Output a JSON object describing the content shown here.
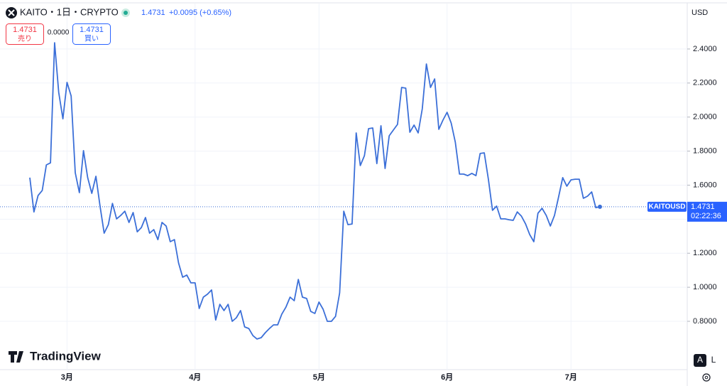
{
  "header": {
    "symbol": "KAITO・1日・CRYPTO",
    "price": "1.4731",
    "change": "+0.0095 (+0.65%)",
    "sell_price": "1.4731",
    "sell_label": "売り",
    "spread": "0.0000",
    "buy_price": "1.4731",
    "buy_label": "買い",
    "currency": "USD",
    "logo": "TradingView",
    "button_auto": "A",
    "button_log": "L"
  },
  "chart_data": {
    "type": "line",
    "symbol_tag": "KAITOUSD",
    "countdown": "02:22:36",
    "categories": [
      null,
      null,
      null,
      null,
      null,
      null,
      null,
      null,
      null,
      "3月",
      null,
      null,
      null,
      null,
      null,
      null,
      null,
      null,
      null,
      null,
      null,
      null,
      null,
      null,
      null,
      null,
      null,
      null,
      null,
      null,
      null,
      null,
      null,
      null,
      null,
      null,
      null,
      null,
      null,
      null,
      "4月",
      null,
      null,
      null,
      null,
      null,
      null,
      null,
      null,
      null,
      null,
      null,
      null,
      null,
      null,
      null,
      null,
      null,
      null,
      null,
      null,
      null,
      null,
      null,
      null,
      null,
      null,
      null,
      null,
      null,
      "5月",
      null,
      null,
      null,
      null,
      null,
      null,
      null,
      null,
      null,
      null,
      null,
      null,
      null,
      null,
      null,
      null,
      null,
      null,
      null,
      null,
      null,
      null,
      null,
      null,
      null,
      null,
      null,
      null,
      null,
      null,
      "6月",
      null,
      null,
      null,
      null,
      null,
      null,
      null,
      null,
      null,
      null,
      null,
      null,
      null,
      null,
      null,
      null,
      null,
      null,
      null,
      null,
      null,
      null,
      null,
      null,
      null,
      null,
      null,
      null,
      null,
      "7月",
      null,
      null,
      null,
      null,
      null,
      null,
      null
    ],
    "series": [
      {
        "name": "KAITOUSD",
        "color": "#3b6fd8",
        "values": [
          1.644,
          1.443,
          1.539,
          1.569,
          1.719,
          1.731,
          2.437,
          2.145,
          1.99,
          2.204,
          2.124,
          1.673,
          1.556,
          1.803,
          1.644,
          1.552,
          1.652,
          1.477,
          1.318,
          1.368,
          1.493,
          1.402,
          1.422,
          1.447,
          1.381,
          1.439,
          1.326,
          1.351,
          1.41,
          1.318,
          1.339,
          1.28,
          1.381,
          1.36,
          1.268,
          1.28,
          1.143,
          1.059,
          1.072,
          1.026,
          1.026,
          0.875,
          0.942,
          0.959,
          0.984,
          0.808,
          0.9,
          0.863,
          0.9,
          0.8,
          0.821,
          0.863,
          0.767,
          0.758,
          0.716,
          0.696,
          0.704,
          0.733,
          0.758,
          0.779,
          0.779,
          0.842,
          0.884,
          0.942,
          0.921,
          1.046,
          0.942,
          0.934,
          0.858,
          0.846,
          0.913,
          0.871,
          0.8,
          0.8,
          0.829,
          0.967,
          1.447,
          1.368,
          1.372,
          1.907,
          1.715,
          1.773,
          1.932,
          1.936,
          1.727,
          1.949,
          1.698,
          1.89,
          1.924,
          1.957,
          2.174,
          2.17,
          1.911,
          1.953,
          1.907,
          2.049,
          2.312,
          2.174,
          2.224,
          1.928,
          1.982,
          2.028,
          1.965,
          1.853,
          1.665,
          1.665,
          1.656,
          1.669,
          1.656,
          1.786,
          1.79,
          1.635,
          1.452,
          1.477,
          1.402,
          1.402,
          1.397,
          1.393,
          1.443,
          1.418,
          1.372,
          1.31,
          1.268,
          1.435,
          1.464,
          1.422,
          1.36,
          1.422,
          1.531,
          1.644,
          1.594,
          1.631,
          1.635,
          1.635,
          1.523,
          1.535,
          1.56,
          1.468,
          1.4731
        ]
      }
    ],
    "ylim": [
      0.516,
      2.667
    ],
    "yticks": [
      {
        "value": 0.8,
        "label": "0.8000"
      },
      {
        "value": 1.0,
        "label": "1.0000"
      },
      {
        "value": 1.2,
        "label": "1.2000"
      },
      {
        "value": 1.4,
        "label": "1.4000"
      },
      {
        "value": 1.6,
        "label": "1.6000"
      },
      {
        "value": 1.8,
        "label": "1.8000"
      },
      {
        "value": 2.0,
        "label": "2.0000"
      },
      {
        "value": 2.2,
        "label": "2.2000"
      },
      {
        "value": 2.4,
        "label": "2.4000"
      }
    ],
    "grid": true
  }
}
